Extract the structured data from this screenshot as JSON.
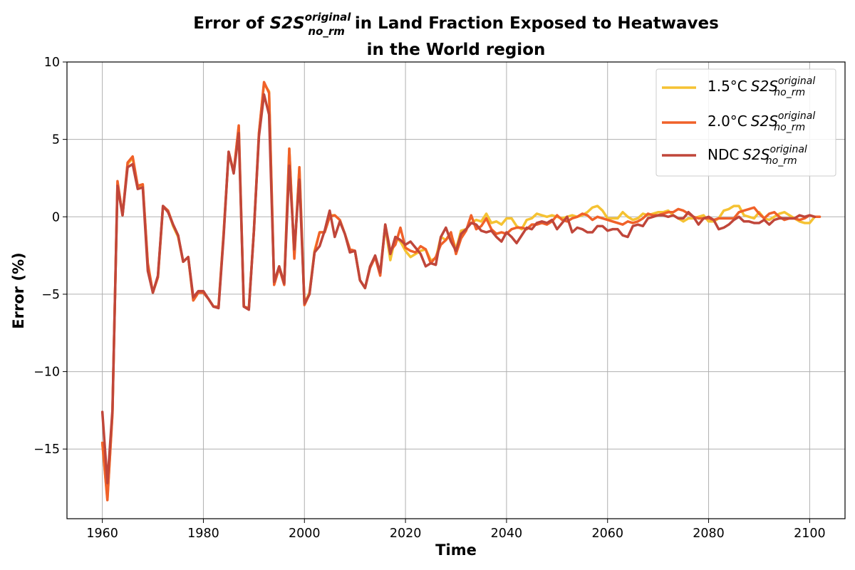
{
  "chart_data": {
    "type": "line",
    "title_line1_prefix": "Error of ",
    "title_math_base": "S2S",
    "title_math_sup": "original",
    "title_math_sub": "no_rm",
    "title_line1_suffix": " in Land Fraction Exposed to Heatwaves",
    "title_line2": "in the World region",
    "xlabel": "Time",
    "ylabel": "Error (%)",
    "xlim": [
      1953,
      2107
    ],
    "ylim": [
      -19.5,
      10
    ],
    "x_ticks": [
      1960,
      1980,
      2000,
      2020,
      2040,
      2060,
      2080,
      2100
    ],
    "y_ticks": [
      10,
      5,
      0,
      -5,
      -10,
      -15
    ],
    "y_tick_labels": [
      "10",
      "5",
      "0",
      "−5",
      "−10",
      "−15"
    ],
    "grid": true,
    "legend_position": "top-right",
    "x_start": 1960,
    "series": [
      {
        "name": "1.5°C",
        "name_math_base": "S2S",
        "name_math_sup": "original",
        "name_math_sub": "no_rm",
        "color": "#f5c232",
        "values": [
          -14.6,
          -18.2,
          -12.7,
          2.2,
          0.1,
          3.4,
          3.8,
          1.9,
          2.1,
          -3.1,
          -4.9,
          -3.9,
          0.6,
          0.4,
          -0.6,
          -1.3,
          -2.9,
          -2.6,
          -5.4,
          -4.9,
          -4.9,
          -5.3,
          -5.8,
          -5.8,
          -1.1,
          4.1,
          2.9,
          5.8,
          -5.8,
          -5.9,
          -0.9,
          5.4,
          8.6,
          8.1,
          -4.3,
          -3.2,
          -4.3,
          4.4,
          -2.6,
          3.2,
          -5.6,
          -4.9,
          -2.2,
          -1.0,
          -1.0,
          0.1,
          0.1,
          -0.2,
          -1.1,
          -2.1,
          -2.2,
          -4.1,
          -4.6,
          -3.2,
          -2.6,
          -3.6,
          -0.6,
          -2.8,
          -1.3,
          -1.6,
          -2.2,
          -2.6,
          -2.4,
          -2.2,
          -2.1,
          -2.8,
          -2.7,
          -1.3,
          -1.5,
          -1.1,
          -2.1,
          -0.9,
          -0.8,
          -0.4,
          -0.2,
          -0.3,
          0.2,
          -0.4,
          -0.3,
          -0.5,
          -0.1,
          -0.1,
          -0.6,
          -0.8,
          -0.2,
          -0.1,
          0.2,
          0.1,
          0.0,
          0.1,
          0.0,
          -0.1,
          0.0,
          0.1,
          0.0,
          0.1,
          0.3,
          0.6,
          0.7,
          0.4,
          -0.1,
          -0.1,
          -0.1,
          0.3,
          0.0,
          -0.2,
          -0.1,
          0.2,
          0.1,
          0.2,
          0.3,
          0.3,
          0.4,
          0.1,
          -0.1,
          -0.3,
          -0.1,
          -0.1,
          0.0,
          0.1,
          -0.3,
          -0.3,
          -0.1,
          0.4,
          0.5,
          0.7,
          0.7,
          0.1,
          0.0,
          -0.1,
          0.3,
          -0.1,
          -0.2,
          0.0,
          0.2,
          0.3,
          0.1,
          -0.1,
          -0.3,
          -0.4,
          -0.4,
          0.0
        ]
      },
      {
        "name": "2.0°C",
        "name_math_base": "S2S",
        "name_math_sup": "original",
        "name_math_sub": "no_rm",
        "color": "#f06129",
        "values": [
          -14.6,
          -18.3,
          -12.7,
          2.3,
          0.1,
          3.5,
          3.9,
          2.0,
          2.1,
          -3.0,
          -4.9,
          -3.9,
          0.7,
          0.4,
          -0.5,
          -1.2,
          -2.9,
          -2.6,
          -5.4,
          -4.9,
          -4.9,
          -5.3,
          -5.8,
          -5.8,
          -1.1,
          4.2,
          2.9,
          5.9,
          -5.8,
          -5.9,
          -0.9,
          5.4,
          8.7,
          8.0,
          -4.4,
          -3.3,
          -4.4,
          4.4,
          -2.7,
          3.2,
          -5.7,
          -5.0,
          -2.3,
          -1.0,
          -1.0,
          0.0,
          0.1,
          -0.2,
          -1.1,
          -2.1,
          -2.2,
          -4.1,
          -4.6,
          -3.3,
          -2.6,
          -3.8,
          -0.5,
          -2.2,
          -1.8,
          -0.7,
          -2.0,
          -2.2,
          -2.3,
          -1.9,
          -2.1,
          -3.0,
          -2.6,
          -1.8,
          -1.5,
          -1.0,
          -2.4,
          -1.4,
          -0.9,
          0.1,
          -0.8,
          -0.6,
          -0.1,
          -0.8,
          -1.1,
          -1.0,
          -1.1,
          -0.8,
          -0.7,
          -0.7,
          -0.8,
          -0.5,
          -0.5,
          -0.4,
          -0.5,
          -0.3,
          0.1,
          -0.2,
          -0.3,
          -0.1,
          0.0,
          0.2,
          0.1,
          -0.2,
          0.0,
          -0.1,
          -0.2,
          -0.3,
          -0.4,
          -0.5,
          -0.3,
          -0.4,
          -0.3,
          -0.1,
          0.2,
          0.1,
          0.1,
          0.2,
          0.3,
          0.3,
          0.5,
          0.4,
          0.2,
          0.0,
          -0.1,
          -0.1,
          -0.1,
          -0.2,
          -0.1,
          -0.1,
          -0.1,
          -0.1,
          0.3,
          0.4,
          0.5,
          0.6,
          0.2,
          -0.1,
          0.2,
          0.3,
          0.0,
          -0.2,
          -0.1,
          -0.1,
          -0.2,
          -0.1,
          0.1,
          0.0,
          0.0
        ]
      },
      {
        "name": "NDC",
        "name_math_base": "S2S",
        "name_math_sup": "original",
        "name_math_sub": "no_rm",
        "color": "#c0463a",
        "values": [
          -12.6,
          -17.2,
          -12.5,
          2.0,
          0.1,
          3.2,
          3.4,
          1.8,
          1.9,
          -3.5,
          -4.9,
          -3.8,
          0.7,
          0.3,
          -0.5,
          -1.2,
          -2.9,
          -2.6,
          -5.2,
          -4.8,
          -4.8,
          -5.3,
          -5.8,
          -5.9,
          -1.3,
          4.2,
          2.8,
          5.4,
          -5.8,
          -6.0,
          -0.9,
          5.2,
          7.9,
          6.6,
          -4.2,
          -3.2,
          -4.3,
          3.3,
          -2.1,
          2.4,
          -5.6,
          -5.0,
          -2.3,
          -1.9,
          -0.9,
          0.4,
          -1.3,
          -0.3,
          -1.1,
          -2.3,
          -2.2,
          -4.1,
          -4.6,
          -3.2,
          -2.5,
          -3.6,
          -0.5,
          -2.4,
          -1.3,
          -1.5,
          -1.8,
          -1.6,
          -2.0,
          -2.4,
          -3.2,
          -3.0,
          -3.1,
          -1.3,
          -0.7,
          -1.6,
          -2.2,
          -1.1,
          -0.8,
          -0.4,
          -0.5,
          -0.9,
          -1.0,
          -0.9,
          -1.3,
          -1.6,
          -1.0,
          -1.3,
          -1.7,
          -1.2,
          -0.7,
          -0.8,
          -0.4,
          -0.3,
          -0.4,
          -0.2,
          -0.8,
          -0.4,
          0.0,
          -1.0,
          -0.7,
          -0.8,
          -1.0,
          -1.0,
          -0.6,
          -0.6,
          -0.9,
          -0.8,
          -0.8,
          -1.2,
          -1.3,
          -0.6,
          -0.5,
          -0.6,
          -0.1,
          0.0,
          0.1,
          0.1,
          0.0,
          0.1,
          -0.1,
          -0.1,
          0.3,
          0.0,
          -0.5,
          -0.1,
          0.0,
          -0.2,
          -0.8,
          -0.7,
          -0.5,
          -0.2,
          0.0,
          -0.3,
          -0.3,
          -0.4,
          -0.4,
          -0.2,
          -0.5,
          -0.2,
          -0.1,
          -0.1,
          -0.1,
          -0.1,
          0.1,
          0.0,
          0.1,
          0.0
        ]
      }
    ]
  }
}
